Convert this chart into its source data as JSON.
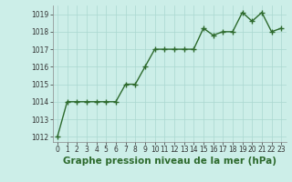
{
  "x": [
    0,
    1,
    2,
    3,
    4,
    5,
    6,
    7,
    8,
    9,
    10,
    11,
    12,
    13,
    14,
    15,
    16,
    17,
    18,
    19,
    20,
    21,
    22,
    23
  ],
  "y": [
    1012,
    1014,
    1014,
    1014,
    1014,
    1014,
    1014,
    1015,
    1015,
    1016,
    1017,
    1017,
    1017,
    1017,
    1017,
    1018.2,
    1017.8,
    1018,
    1018,
    1019.1,
    1018.6,
    1019.1,
    1018,
    1018.2
  ],
  "ylim_min": 1011.7,
  "ylim_max": 1019.5,
  "yticks": [
    1012,
    1013,
    1014,
    1015,
    1016,
    1017,
    1018,
    1019
  ],
  "xticks": [
    0,
    1,
    2,
    3,
    4,
    5,
    6,
    7,
    8,
    9,
    10,
    11,
    12,
    13,
    14,
    15,
    16,
    17,
    18,
    19,
    20,
    21,
    22,
    23
  ],
  "line_color": "#2d6a2d",
  "marker_color": "#2d6a2d",
  "bg_color": "#cceee8",
  "grid_color": "#aad8d0",
  "xlabel": "Graphe pression niveau de la mer (hPa)",
  "xlabel_color": "#2d6a2d",
  "xlabel_fontsize": 7.5,
  "tick_fontsize": 5.5,
  "line_width": 1.0,
  "marker_size": 2.5,
  "fig_width": 3.2,
  "fig_height": 2.0
}
